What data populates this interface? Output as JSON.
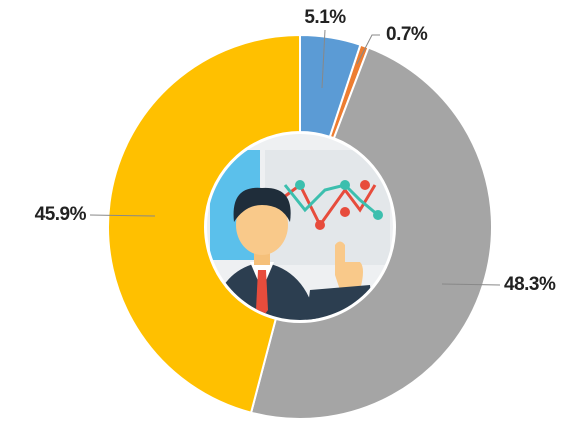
{
  "chart_data": {
    "type": "donut",
    "categories": [
      null,
      null,
      null,
      null
    ],
    "values": [
      5.1,
      0.7,
      48.3,
      45.9
    ],
    "value_labels": [
      "5.1%",
      "0.7%",
      "48.3%",
      "45.9%"
    ],
    "colors": [
      "#5b9bd5",
      "#ed7d31",
      "#a5a5a5",
      "#ffc000"
    ]
  }
}
